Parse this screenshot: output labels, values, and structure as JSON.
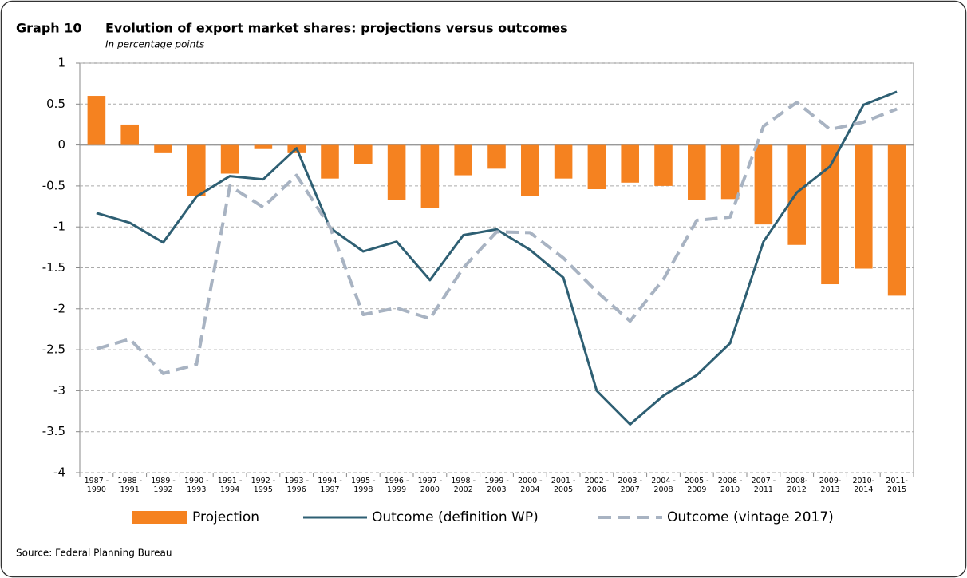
{
  "graph_label": "Graph 10",
  "source": "Source: Federal Planning Bureau",
  "chart_data": {
    "type": "bar_line",
    "title": "Evolution of export market shares: projections versus outcomes",
    "subtitle": "In percentage points",
    "categories": [
      "1987 -\n1990",
      "1988 -\n1991",
      "1989 -\n1992",
      "1990 -\n1993",
      "1991 -\n1994",
      "1992 -\n1995",
      "1993 -\n1996",
      "1994 -\n1997",
      "1995 -\n1998",
      "1996 -\n1999",
      "1997 -\n2000",
      "1998 -\n2002",
      "1999 -\n2003",
      "2000 -\n2004",
      "2001 -\n2005",
      "2002 -\n2006",
      "2003 -\n2007",
      "2004 -\n2008",
      "2005 -\n2009",
      "2006 -\n2010",
      "2007 -\n2011",
      "2008-\n2012",
      "2009-\n2013",
      "2010-\n2014",
      "2011-\n2015"
    ],
    "series": [
      {
        "name": "Projection",
        "type": "bar",
        "color": "#f58220",
        "values": [
          0.6,
          0.25,
          -0.1,
          -0.62,
          -0.35,
          -0.05,
          -0.1,
          -0.41,
          -0.23,
          -0.67,
          -0.77,
          -0.37,
          -0.29,
          -0.62,
          -0.41,
          -0.54,
          -0.46,
          -0.5,
          -0.67,
          -0.66,
          -0.97,
          -1.22,
          -1.7,
          -1.51,
          -1.84
        ]
      },
      {
        "name": "Outcome (definition WP)",
        "type": "line",
        "color": "#2e5f73",
        "dash": false,
        "values": [
          -0.83,
          -0.95,
          -1.19,
          -0.63,
          -0.38,
          -0.42,
          -0.04,
          -1.01,
          -1.3,
          -1.18,
          -1.65,
          -1.1,
          -1.03,
          -1.28,
          -1.62,
          -3.0,
          -3.41,
          -3.06,
          -2.81,
          -2.42,
          -1.18,
          -0.58,
          -0.26,
          0.49,
          0.65
        ]
      },
      {
        "name": "Outcome (vintage 2017)",
        "type": "line",
        "color": "#a8b3c2",
        "dash": true,
        "values": [
          -2.49,
          -2.37,
          -2.79,
          -2.68,
          -0.5,
          -0.76,
          -0.37,
          -1.0,
          -2.07,
          -1.99,
          -2.12,
          -1.5,
          -1.06,
          -1.07,
          -1.38,
          -1.79,
          -2.15,
          -1.64,
          -0.92,
          -0.88,
          0.23,
          0.52,
          0.19,
          0.28,
          0.44
        ]
      }
    ],
    "ylim": [
      -4,
      1
    ],
    "yticks": [
      1,
      0.5,
      0,
      -0.5,
      -1,
      -1.5,
      -2,
      -2.5,
      -3,
      -3.5,
      -4
    ],
    "grid": true,
    "legend": "bottom"
  }
}
